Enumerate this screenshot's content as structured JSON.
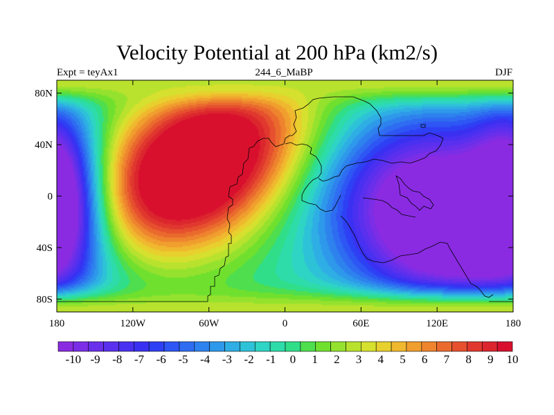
{
  "chart_data": {
    "type": "heatmap",
    "title": "Velocity Potential at 200 hPa (km2/s)",
    "subtitle_left": "Expt = teyAx1",
    "subtitle_center": "244_6_MaBP",
    "subtitle_right": "DJF",
    "x_range": [
      -180,
      180
    ],
    "y_range": [
      -90,
      90
    ],
    "x_ticks": [
      -180,
      -120,
      -60,
      0,
      60,
      120,
      180
    ],
    "x_tick_labels": [
      "180",
      "120W",
      "60W",
      "0",
      "60E",
      "120E",
      "180"
    ],
    "y_ticks": [
      80,
      40,
      0,
      -40,
      -80
    ],
    "y_tick_labels": [
      "80N",
      "40N",
      "0",
      "40S",
      "80S"
    ],
    "colorbar_ticks": [
      -10,
      -9,
      -8,
      -7,
      -6,
      -5,
      -4,
      -3,
      -2,
      -1,
      0,
      1,
      2,
      3,
      4,
      5,
      6,
      7,
      8,
      9,
      10
    ],
    "colorbar_labels": [
      "-10",
      "-9",
      "-8",
      "-7",
      "-6",
      "-5",
      "-4",
      "-3",
      "-2",
      "-1",
      "0",
      "1",
      "2",
      "3",
      "4",
      "5",
      "6",
      "7",
      "8",
      "9",
      "10"
    ],
    "colorbar_colors": [
      "#8a2be2",
      "#7b2ee6",
      "#6a2fea",
      "#5a30ee",
      "#4a30f0",
      "#3a30f2",
      "#2e40f4",
      "#2e56f4",
      "#2e6cf2",
      "#2e82ee",
      "#2e98ea",
      "#2eaee4",
      "#2ec2d8",
      "#2ed4c4",
      "#2edcaa",
      "#30de8a",
      "#4ede4e",
      "#70e02e",
      "#94e22e",
      "#b8e22e",
      "#d6e02e",
      "#e8d02e",
      "#f0b82e",
      "#f09e2e",
      "#ee842e",
      "#ea6a2e",
      "#e6502e",
      "#e0382e",
      "#dc262e",
      "#d8102e"
    ],
    "field_extrema": [
      {
        "lon": -75,
        "lat": 20,
        "value": 10.5,
        "feature": "maximum (Americas)"
      },
      {
        "lon": 135,
        "lat": -20,
        "value": -10.8,
        "feature": "minimum (Indo-Pacific)"
      },
      {
        "lon": -180,
        "lat": 0,
        "value": -10,
        "feature": "minimum (dateline)"
      }
    ]
  }
}
